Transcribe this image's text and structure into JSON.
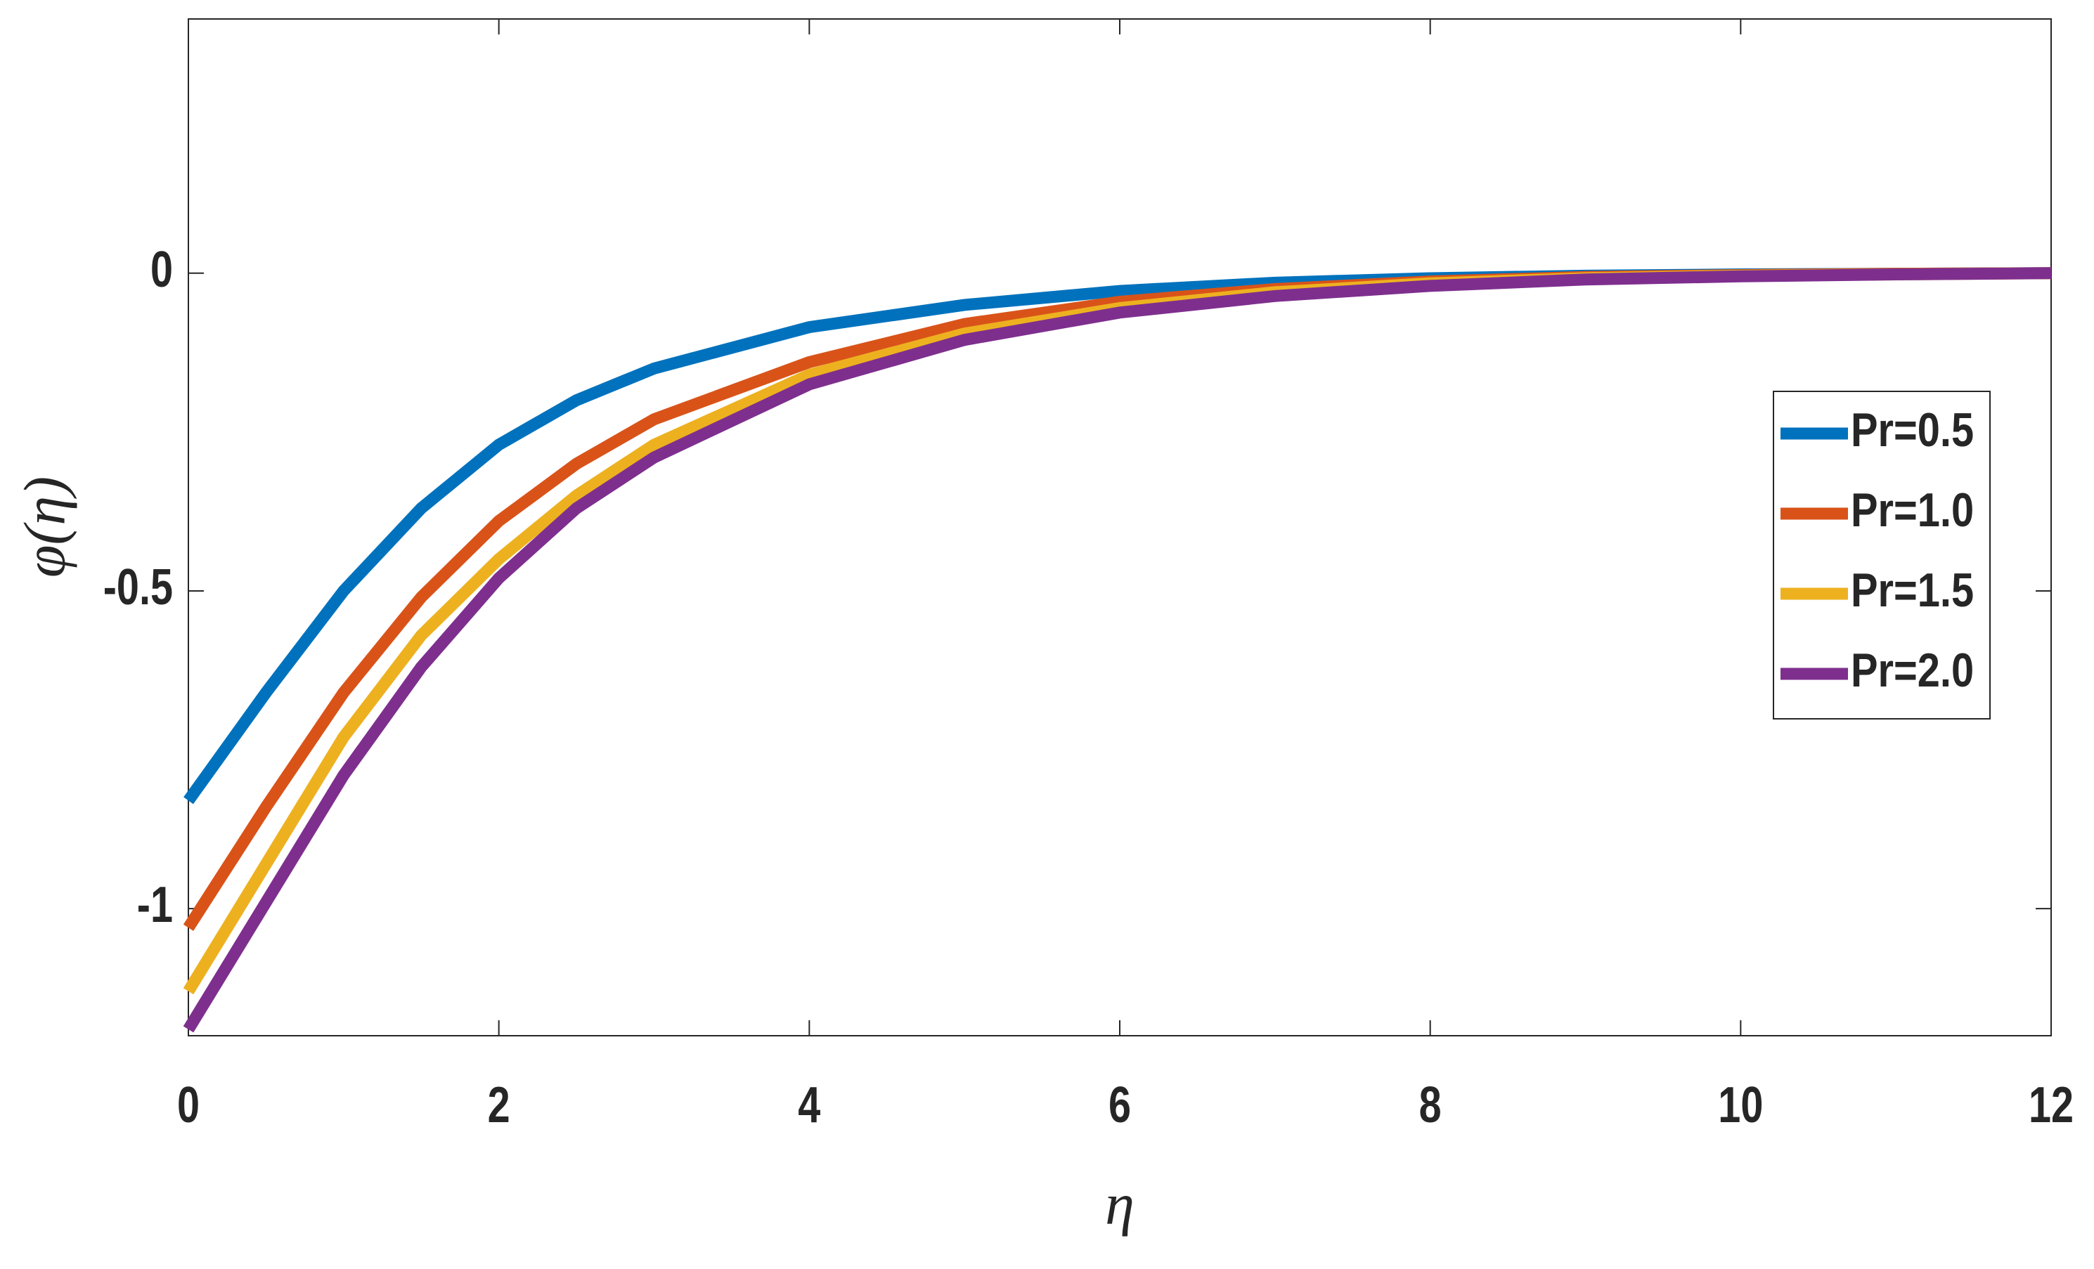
{
  "chart_data": {
    "type": "line",
    "xlabel": "η",
    "ylabel": "φ(η)",
    "x": [
      0,
      0.5,
      1,
      1.5,
      2,
      2.5,
      3,
      4,
      5,
      6,
      7,
      8,
      9,
      10,
      11,
      12
    ],
    "series": [
      {
        "name": "Pr=0.5",
        "color": "#0072bd",
        "values": [
          -0.83,
          -0.66,
          -0.5,
          -0.37,
          -0.27,
          -0.2,
          -0.15,
          -0.085,
          -0.05,
          -0.028,
          -0.015,
          -0.008,
          -0.004,
          -0.002,
          -0.001,
          0
        ]
      },
      {
        "name": "Pr=1.0",
        "color": "#d95319",
        "values": [
          -1.03,
          -0.84,
          -0.66,
          -0.51,
          -0.39,
          -0.3,
          -0.23,
          -0.14,
          -0.08,
          -0.045,
          -0.025,
          -0.013,
          -0.006,
          -0.003,
          -0.001,
          0
        ]
      },
      {
        "name": "Pr=1.5",
        "color": "#edb120",
        "values": [
          -1.13,
          -0.93,
          -0.73,
          -0.57,
          -0.45,
          -0.35,
          -0.27,
          -0.16,
          -0.095,
          -0.055,
          -0.03,
          -0.016,
          -0.008,
          -0.004,
          -0.002,
          0
        ]
      },
      {
        "name": "Pr=2.0",
        "color": "#7e2f8e",
        "values": [
          -1.19,
          -0.99,
          -0.79,
          -0.62,
          -0.48,
          -0.37,
          -0.29,
          -0.175,
          -0.105,
          -0.062,
          -0.036,
          -0.02,
          -0.01,
          -0.005,
          -0.002,
          0
        ]
      }
    ],
    "xlim": [
      0,
      12
    ],
    "xticks": [
      0,
      2,
      4,
      6,
      8,
      10,
      12
    ],
    "ylim": [
      -1.2,
      0.4
    ],
    "yticks": [
      -1,
      -0.5,
      0
    ],
    "grid": false,
    "legend": "east"
  }
}
